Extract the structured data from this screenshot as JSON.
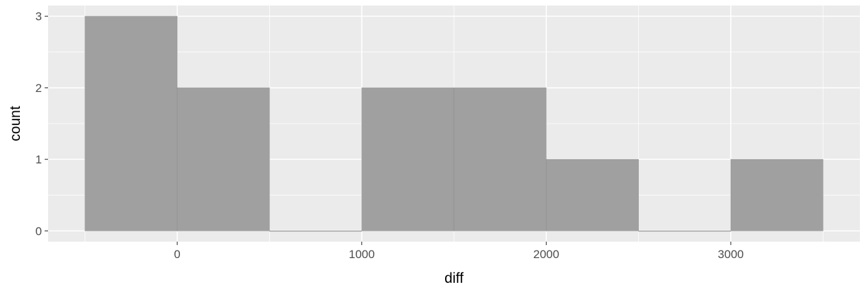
{
  "chart_data": {
    "type": "bar",
    "xlabel": "diff",
    "ylabel": "count",
    "bins": [
      {
        "x_start": -500,
        "x_end": 0,
        "count": 3
      },
      {
        "x_start": 0,
        "x_end": 500,
        "count": 2
      },
      {
        "x_start": 500,
        "x_end": 1000,
        "count": 0
      },
      {
        "x_start": 1000,
        "x_end": 1500,
        "count": 2
      },
      {
        "x_start": 1500,
        "x_end": 2000,
        "count": 2
      },
      {
        "x_start": 2000,
        "x_end": 2500,
        "count": 1
      },
      {
        "x_start": 2500,
        "x_end": 3000,
        "count": 0
      },
      {
        "x_start": 3000,
        "x_end": 3500,
        "count": 1
      }
    ],
    "x_ticks": [
      0,
      1000,
      2000,
      3000
    ],
    "x_tick_labels": [
      "0",
      "1000",
      "2000",
      "3000"
    ],
    "y_ticks": [
      0,
      1,
      2,
      3
    ],
    "y_tick_labels": [
      "0",
      "1",
      "2",
      "3"
    ],
    "xlim": [
      -700,
      3700
    ],
    "ylim": [
      -0.15,
      3.15
    ],
    "grid": true,
    "colors": {
      "panel_background": "#ebebeb",
      "grid": "#ffffff",
      "bar_fill": "#a0a0a0",
      "bar_outline": "#8c8c8c"
    }
  }
}
